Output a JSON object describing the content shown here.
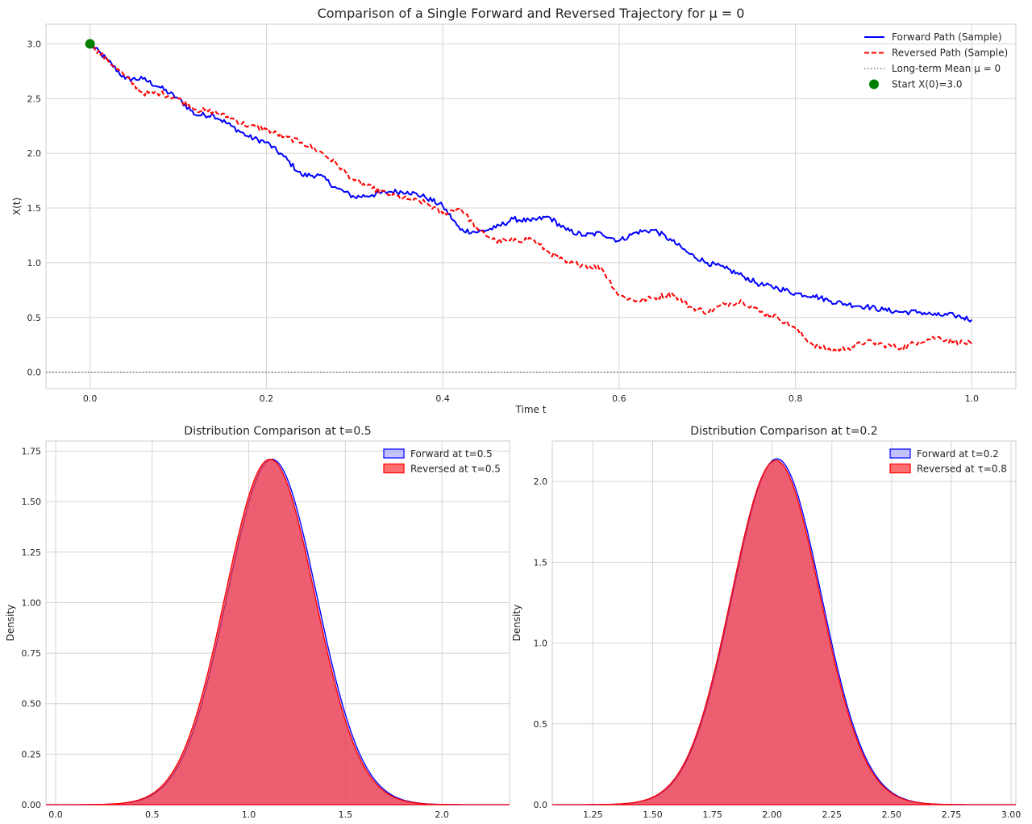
{
  "chart_data": [
    {
      "type": "line",
      "title": "Comparison of a Single Forward and Reversed Trajectory for μ = 0",
      "xlabel": "Time t",
      "ylabel": "X(t)",
      "xlim": [
        -0.05,
        1.05
      ],
      "ylim": [
        -0.15,
        3.18
      ],
      "xticks": [
        "0.0",
        "0.2",
        "0.4",
        "0.6",
        "0.8",
        "1.0"
      ],
      "yticks": [
        "0.0",
        "0.5",
        "1.0",
        "1.5",
        "2.0",
        "2.5",
        "3.0"
      ],
      "grid": true,
      "legend_position": "top-right",
      "legend": [
        {
          "label": "Forward Path (Sample)",
          "style": "solid",
          "color": "#0000ff"
        },
        {
          "label": "Reversed Path (Sample)",
          "style": "dashed",
          "color": "#ff0000"
        },
        {
          "label": "Long-term Mean μ = 0",
          "style": "dotted",
          "color": "#555555"
        },
        {
          "label": "Start X(0)=3.0",
          "style": "marker",
          "color": "#008000"
        }
      ],
      "series": [
        {
          "name": "Forward Path (Sample)",
          "color": "#0000ff",
          "x": [
            0.0,
            0.02,
            0.04,
            0.06,
            0.08,
            0.1,
            0.12,
            0.14,
            0.16,
            0.18,
            0.2,
            0.22,
            0.24,
            0.26,
            0.28,
            0.3,
            0.32,
            0.34,
            0.36,
            0.38,
            0.4,
            0.42,
            0.44,
            0.46,
            0.48,
            0.5,
            0.52,
            0.54,
            0.56,
            0.58,
            0.6,
            0.62,
            0.64,
            0.66,
            0.68,
            0.7,
            0.72,
            0.74,
            0.76,
            0.78,
            0.8,
            0.82,
            0.84,
            0.86,
            0.88,
            0.9,
            0.92,
            0.94,
            0.96,
            0.98,
            1.0
          ],
          "y": [
            3.0,
            2.85,
            2.68,
            2.68,
            2.6,
            2.5,
            2.35,
            2.35,
            2.25,
            2.15,
            2.1,
            1.97,
            1.8,
            1.8,
            1.68,
            1.6,
            1.62,
            1.65,
            1.65,
            1.6,
            1.52,
            1.3,
            1.28,
            1.32,
            1.4,
            1.38,
            1.42,
            1.3,
            1.25,
            1.27,
            1.2,
            1.28,
            1.3,
            1.2,
            1.08,
            1.0,
            0.95,
            0.88,
            0.8,
            0.77,
            0.72,
            0.7,
            0.65,
            0.62,
            0.6,
            0.57,
            0.55,
            0.55,
            0.52,
            0.52,
            0.48
          ]
        },
        {
          "name": "Reversed Path (Sample)",
          "color": "#ff0000",
          "x": [
            0.0,
            0.02,
            0.04,
            0.06,
            0.08,
            0.1,
            0.12,
            0.14,
            0.16,
            0.18,
            0.2,
            0.22,
            0.24,
            0.26,
            0.28,
            0.3,
            0.32,
            0.34,
            0.36,
            0.38,
            0.4,
            0.42,
            0.44,
            0.46,
            0.48,
            0.5,
            0.52,
            0.54,
            0.56,
            0.58,
            0.6,
            0.62,
            0.64,
            0.66,
            0.68,
            0.7,
            0.72,
            0.74,
            0.76,
            0.78,
            0.8,
            0.82,
            0.84,
            0.86,
            0.88,
            0.9,
            0.92,
            0.94,
            0.96,
            0.98,
            1.0
          ],
          "y": [
            3.0,
            2.85,
            2.7,
            2.55,
            2.55,
            2.5,
            2.4,
            2.38,
            2.32,
            2.25,
            2.22,
            2.15,
            2.1,
            2.02,
            1.9,
            1.75,
            1.68,
            1.62,
            1.58,
            1.55,
            1.45,
            1.5,
            1.3,
            1.2,
            1.2,
            1.22,
            1.1,
            1.0,
            0.98,
            0.95,
            0.7,
            0.65,
            0.68,
            0.72,
            0.6,
            0.55,
            0.62,
            0.65,
            0.55,
            0.5,
            0.4,
            0.25,
            0.2,
            0.22,
            0.28,
            0.25,
            0.22,
            0.28,
            0.32,
            0.28,
            0.26
          ]
        }
      ],
      "mean_line": 0.0,
      "start_point": {
        "x": 0.0,
        "y": 3.0
      }
    },
    {
      "type": "area",
      "title": "Distribution Comparison at t=0.5",
      "xlabel": "",
      "ylabel": "Density",
      "xlim": [
        -0.05,
        2.35
      ],
      "ylim": [
        0,
        1.8
      ],
      "xticks": [
        "0.0",
        "0.5",
        "1.0",
        "1.5",
        "2.0"
      ],
      "yticks": [
        "0.00",
        "0.25",
        "0.50",
        "0.75",
        "1.00",
        "1.25",
        "1.50",
        "1.75"
      ],
      "grid": true,
      "legend_position": "top-right",
      "series": [
        {
          "name": "Forward at t=0.5",
          "fill": "#9999ff",
          "edge": "#0000ff",
          "mean": 1.12,
          "sd": 0.232,
          "peak": 1.71
        },
        {
          "name": "Reversed at τ=0.5",
          "fill": "#ff3333",
          "edge": "#ff0000",
          "mean": 1.11,
          "sd": 0.232,
          "peak": 1.71
        }
      ]
    },
    {
      "type": "area",
      "title": "Distribution Comparison at t=0.2",
      "xlabel": "",
      "ylabel": "Density",
      "xlim": [
        1.08,
        3.02
      ],
      "ylim": [
        0,
        2.25
      ],
      "xticks": [
        "1.25",
        "1.50",
        "1.75",
        "2.00",
        "2.25",
        "2.50",
        "2.75",
        "3.00"
      ],
      "yticks": [
        "0.0",
        "0.5",
        "1.0",
        "1.5",
        "2.0"
      ],
      "grid": true,
      "legend_position": "top-right",
      "series": [
        {
          "name": "Forward at t=0.2",
          "fill": "#9999ff",
          "edge": "#0000ff",
          "mean": 2.02,
          "sd": 0.186,
          "peak": 2.14
        },
        {
          "name": "Reversed at τ=0.8",
          "fill": "#ff3333",
          "edge": "#ff0000",
          "mean": 2.015,
          "sd": 0.186,
          "peak": 2.13
        }
      ]
    }
  ]
}
